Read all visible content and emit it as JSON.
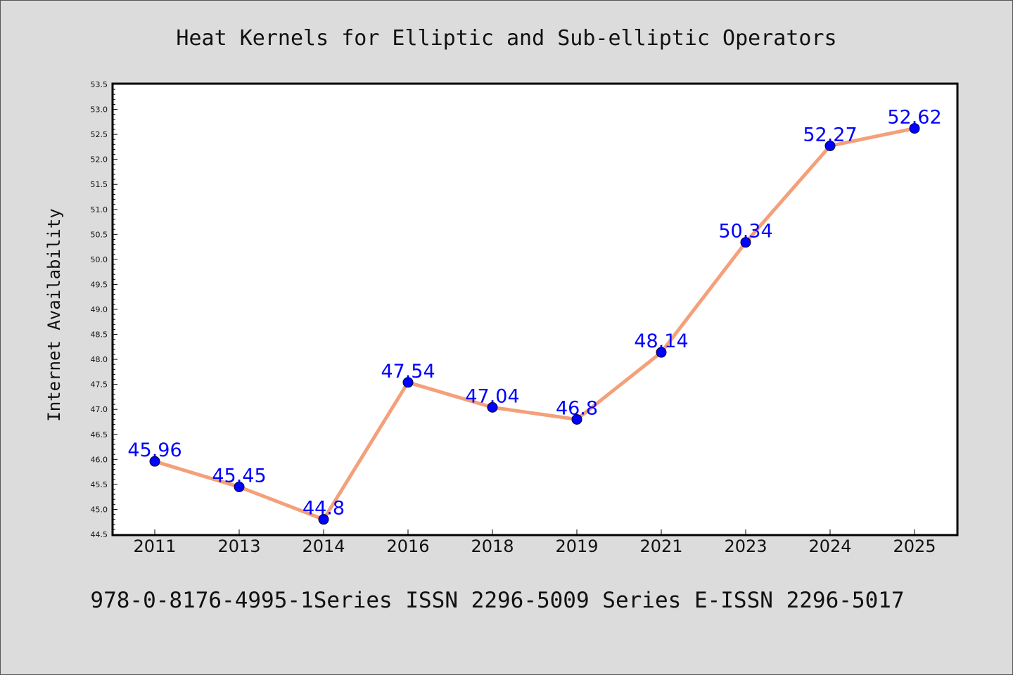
{
  "colors": {
    "background": "#dcdcdc",
    "plot_background": "#ffffff",
    "line": "#f4a07a",
    "marker": "#0000ff",
    "data_label": "#0000ff"
  },
  "chart_data": {
    "type": "line",
    "title": "Heat Kernels for Elliptic and Sub-elliptic Operators",
    "xlabel": "",
    "ylabel": "Internet Availability",
    "footer": "978-0-8176-4995-1Series ISSN 2296-5009 Series E-ISSN 2296-5017",
    "categories": [
      "2011",
      "2013",
      "2014",
      "2016",
      "2018",
      "2019",
      "2021",
      "2023",
      "2024",
      "2025"
    ],
    "series": [
      {
        "values": [
          45.96,
          45.45,
          44.8,
          47.54,
          47.04,
          46.8,
          48.14,
          50.34,
          52.27,
          52.62
        ],
        "data_labels": [
          "45.96",
          "45.45",
          "44.8",
          "47.54",
          "47.04",
          "46.8",
          "48.14",
          "50.34",
          "52.27",
          "52.62"
        ]
      }
    ],
    "ylim": [
      44.5,
      53.5
    ],
    "yticks": [
      "44.5",
      "45.0",
      "45.5",
      "46.0",
      "46.5",
      "47.0",
      "47.5",
      "48.0",
      "48.5",
      "49.0",
      "49.5",
      "50.0",
      "50.5",
      "51.0",
      "51.5",
      "52.0",
      "52.5",
      "53.0",
      "53.5"
    ],
    "grid": false,
    "legend": "none"
  }
}
